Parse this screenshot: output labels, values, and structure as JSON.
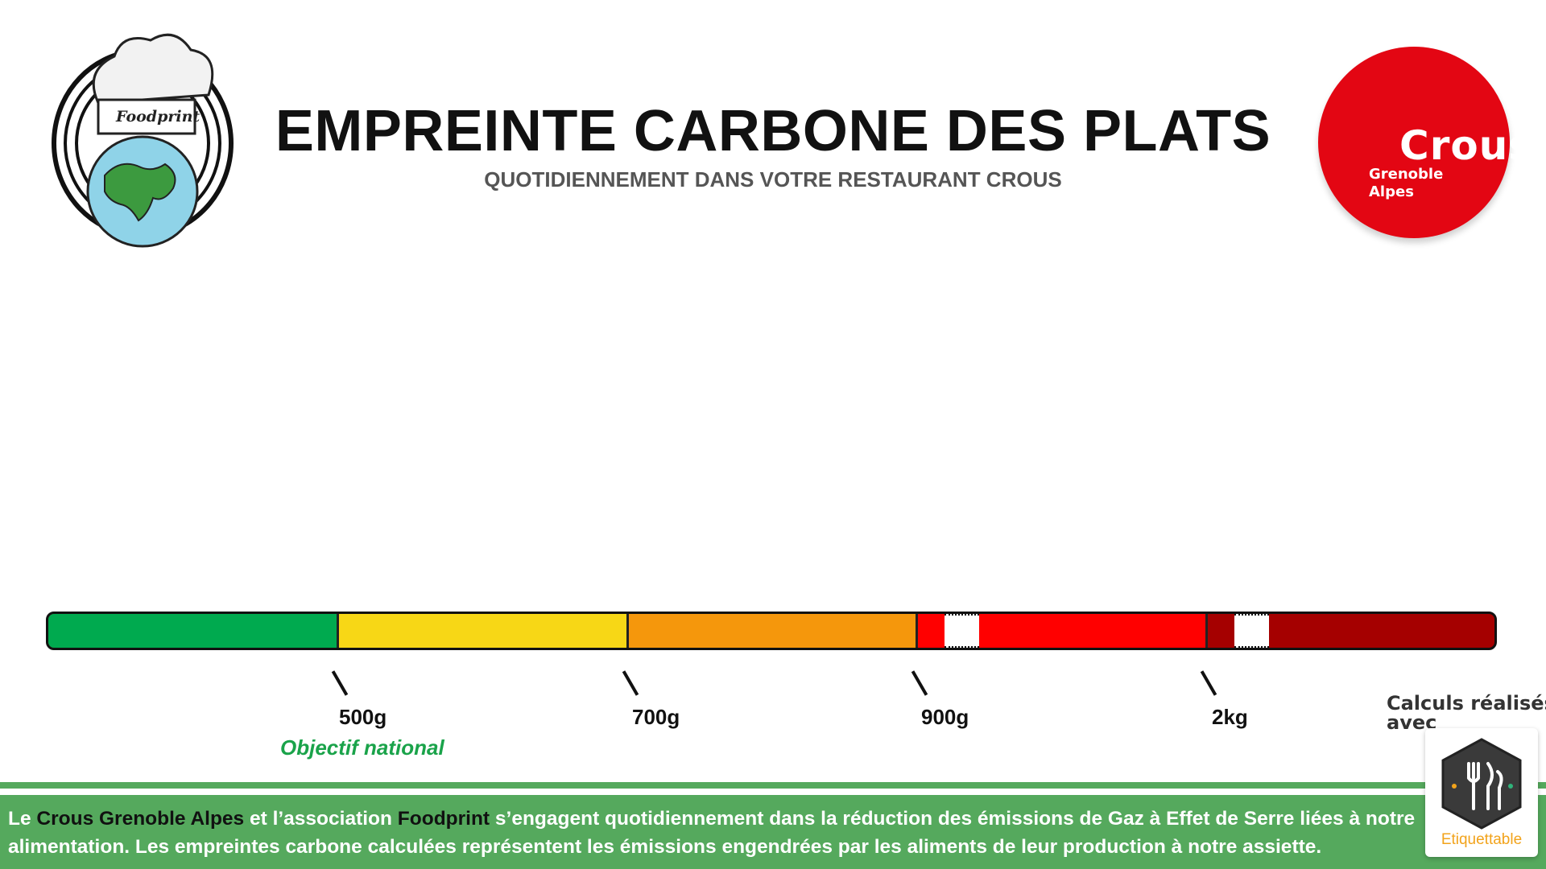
{
  "header": {
    "title": "EMPREINTE CARBONE DES PLATS",
    "subtitle": "QUOTIDIENNEMENT DANS VOTRE RESTAURANT CROUS"
  },
  "logos": {
    "foodprint": {
      "text": "Foodprint",
      "icon": "chef-hat-globe-icon"
    },
    "crous": {
      "word": "Crous",
      "line1": "Grenoble",
      "line2": "Alpes",
      "color": "#e30613"
    }
  },
  "scale": {
    "segment_colors": [
      "#00aa4f",
      "#f7d716",
      "#f5970c",
      "#ff0000",
      "#a50000"
    ],
    "ticks": [
      "500g",
      "700g",
      "900g",
      "2kg"
    ],
    "objective_label": "Objectif national"
  },
  "calculated_with": {
    "line1": "Calculs réalisés",
    "line2": "avec",
    "brand": "Etiquettable",
    "icon": "cutlery-hexagon-icon"
  },
  "footer": {
    "part1": "Le ",
    "org": "Crous Grenoble Alpes",
    "part2": " et l’association ",
    "assoc": "Foodprint",
    "part3": " s’engagent quotidiennement dans la réduction des émissions de Gaz à Effet de Serre liées à notre alimentation. Les empreintes carbone calculées représentent les émissions engendrées par les aliments de leur production à notre assiette."
  }
}
